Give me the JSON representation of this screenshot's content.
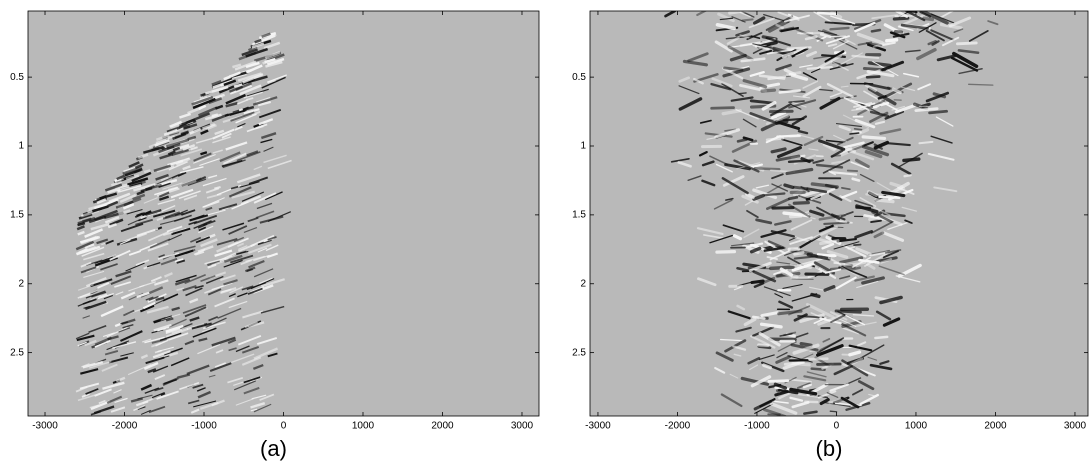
{
  "chart_data": [
    {
      "type": "image",
      "caption": "(a)",
      "xlim": [
        -3214,
        3214
      ],
      "ylim": [
        0.02,
        2.96
      ],
      "xticks": [
        -3000,
        -2000,
        -1000,
        0,
        1000,
        2000,
        3000
      ],
      "yticks": [
        0.5,
        1,
        1.5,
        2,
        2.5
      ]
    },
    {
      "type": "image",
      "caption": "(b)",
      "xlim": [
        -3100,
        3164
      ],
      "ylim": [
        0.02,
        2.96
      ],
      "xticks": [
        -3000,
        -2000,
        -1000,
        0,
        1000,
        2000,
        3000
      ],
      "yticks": [
        0.5,
        1,
        1.5,
        2,
        2.5
      ]
    }
  ]
}
